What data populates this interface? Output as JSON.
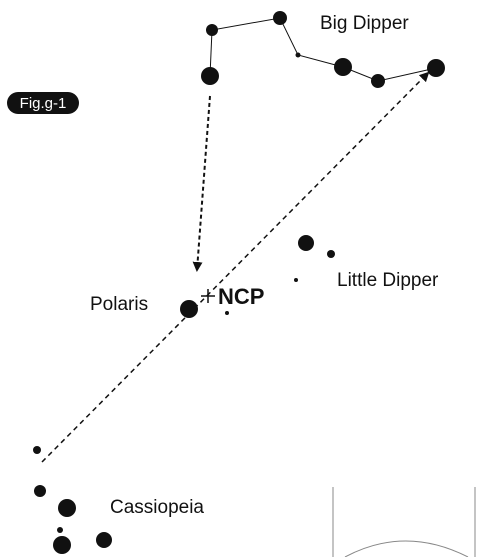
{
  "labels": {
    "big_dipper": "Big Dipper",
    "figure": "Fig.g-1",
    "little_dipper": "Little Dipper",
    "polaris": "Polaris",
    "ncp": "NCP",
    "cassiopeia": "Cassiopeia"
  }
}
